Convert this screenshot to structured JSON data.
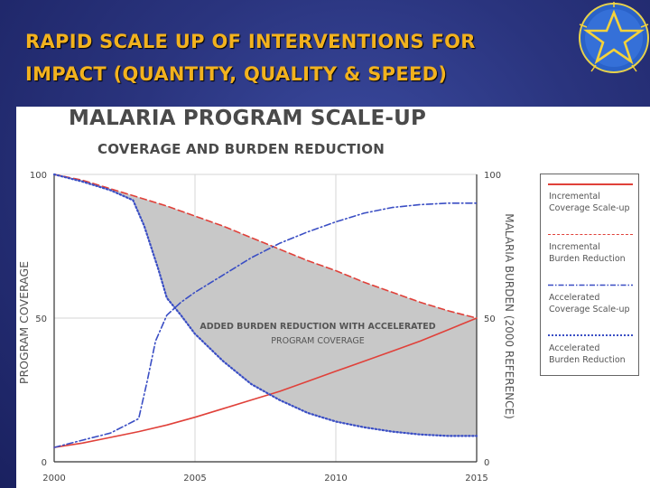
{
  "slide": {
    "title_line1": "RAPID SCALE UP OF INTERVENTIONS FOR",
    "title_line2": "IMPACT (QUANTITY, QUALITY & SPEED)",
    "title_color": "#f2b21e",
    "emblem_icon": "ethiopia-star-emblem-icon"
  },
  "chart_data": {
    "type": "line",
    "title": "MALARIA PROGRAM SCALE-UP",
    "subtitle": "COVERAGE AND BURDEN REDUCTION",
    "xlabel": "",
    "ylabel_left": "PROGRAM COVERAGE",
    "ylabel_right": "MALARIA BURDEN (2000 REFERENCE)",
    "xlim": [
      2000,
      2015
    ],
    "ylim": [
      0,
      100
    ],
    "x_ticks": [
      "2000",
      "2005",
      "2010",
      "2015"
    ],
    "y_ticks_left": [
      "0",
      "50",
      "100"
    ],
    "y_ticks_right": [
      "0",
      "50",
      "100"
    ],
    "grid": true,
    "annotation": {
      "line1": "ADDED BURDEN REDUCTION WITH ACCELERATED",
      "line2": "PROGRAM COVERAGE",
      "fill_color": "#c8c8c8"
    },
    "series": [
      {
        "name": "Incremental Coverage Scale-up",
        "legend_line1": "Incremental",
        "legend_line2": "Coverage Scale-up",
        "color": "#e0413a",
        "style": "solid",
        "x": [
          2000,
          2001,
          2002,
          2003,
          2004,
          2005,
          2006,
          2007,
          2008,
          2009,
          2010,
          2011,
          2012,
          2013,
          2014,
          2015
        ],
        "y": [
          5,
          6.5,
          8.5,
          10.5,
          12.8,
          15.5,
          18.5,
          21.5,
          24.5,
          28,
          31.5,
          35,
          38.5,
          42,
          46,
          50
        ]
      },
      {
        "name": "Incremental Burden Reduction",
        "legend_line1": "Incremental",
        "legend_line2": "Burden Reduction",
        "color": "#e0413a",
        "style": "dashed",
        "x": [
          2000,
          2001,
          2002,
          2003,
          2004,
          2005,
          2006,
          2007,
          2008,
          2009,
          2010,
          2011,
          2012,
          2013,
          2014,
          2015
        ],
        "y": [
          100,
          98,
          95,
          92,
          89,
          85.5,
          82,
          78,
          74,
          70,
          66.5,
          62.5,
          59,
          55.5,
          52.5,
          50
        ]
      },
      {
        "name": "Accelerated Coverage Scale-up",
        "legend_line1": "Accelerated",
        "legend_line2": "Coverage Scale-up",
        "color": "#3a4ec4",
        "style": "dashdot",
        "x": [
          2000,
          2001,
          2002,
          2003,
          2003.3,
          2003.6,
          2004,
          2004.5,
          2005,
          2006,
          2007,
          2008,
          2009,
          2010,
          2011,
          2012,
          2013,
          2014,
          2015
        ],
        "y": [
          5,
          7.5,
          10,
          15,
          28,
          42,
          51,
          55.5,
          59,
          65,
          71,
          76,
          80,
          83.5,
          86.5,
          88.5,
          89.5,
          90,
          90
        ]
      },
      {
        "name": "Accelerated Burden Reduction",
        "legend_line1": "Accelerated",
        "legend_line2": "Burden Reduction",
        "color": "#3a4ec4",
        "style": "dotted",
        "x": [
          2000,
          2001,
          2002,
          2002.8,
          2003.2,
          2003.7,
          2004,
          2004.5,
          2005,
          2006,
          2007,
          2008,
          2009,
          2010,
          2011,
          2012,
          2013,
          2014,
          2015
        ],
        "y": [
          100,
          97.5,
          94.5,
          91,
          82,
          67,
          57,
          51,
          44.5,
          35,
          27,
          21.5,
          17,
          14,
          12,
          10.5,
          9.5,
          9,
          9
        ]
      }
    ]
  }
}
